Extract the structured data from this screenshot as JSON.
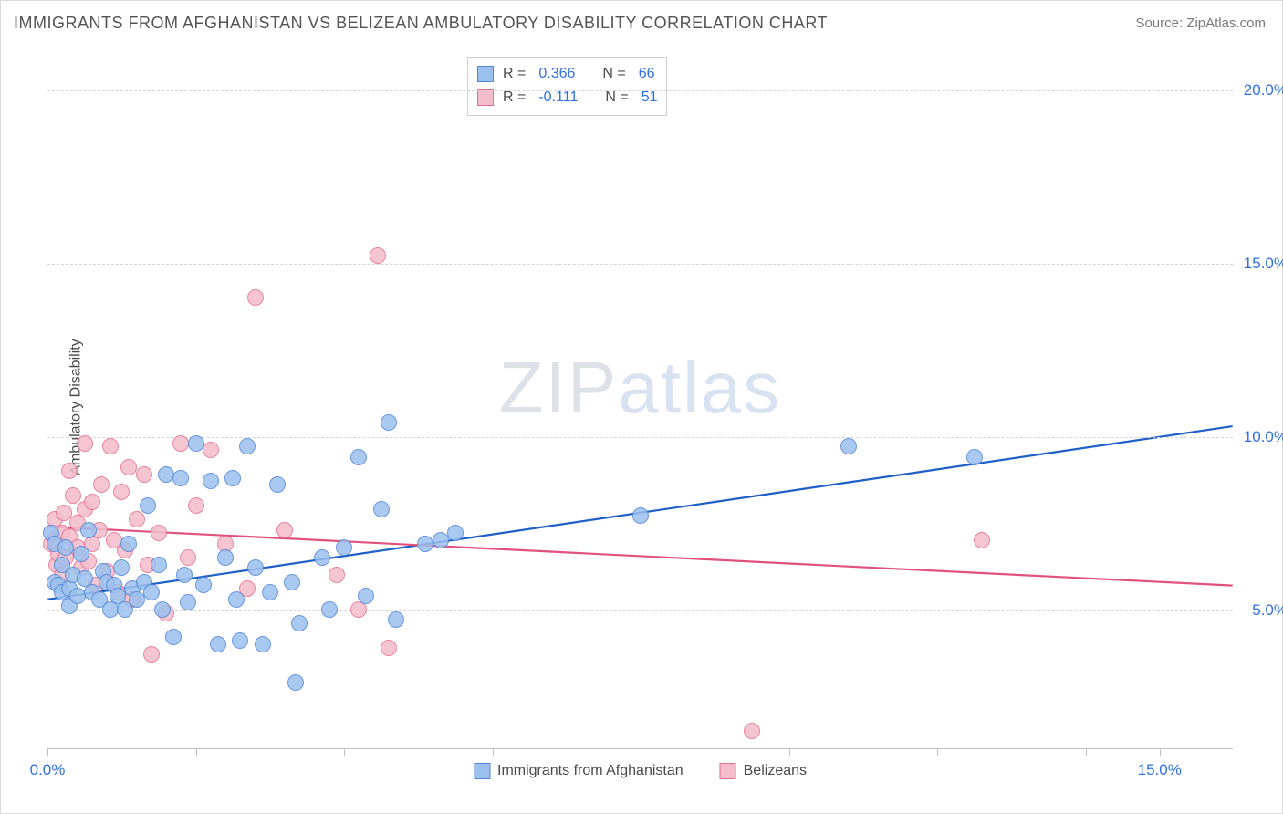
{
  "title": "IMMIGRANTS FROM AFGHANISTAN VS BELIZEAN AMBULATORY DISABILITY CORRELATION CHART",
  "source": "Source: ZipAtlas.com",
  "ylabel": "Ambulatory Disability",
  "watermark": {
    "part1": "ZIP",
    "part2": "atlas"
  },
  "chart": {
    "type": "scatter",
    "background_color": "#ffffff",
    "grid_color": "#d4d4d4",
    "axis_color": "#bfbfbf",
    "xlim": [
      0,
      16
    ],
    "ylim": [
      1,
      21
    ],
    "xticks": [
      0,
      2,
      4,
      6,
      8,
      10,
      12,
      14,
      15
    ],
    "xtick_labels": {
      "0": "0.0%",
      "15": "15.0%"
    },
    "yticks": [
      5,
      10,
      15,
      20
    ],
    "ytick_labels": {
      "5": "5.0%",
      "10": "10.0%",
      "15": "15.0%",
      "20": "20.0%"
    },
    "tick_label_color": "#2f6fe0",
    "tick_label_fontsize": 17,
    "marker_radius": 9,
    "marker_fill_opacity": 0.35,
    "marker_stroke_opacity": 0.9,
    "marker_stroke_width": 1.2,
    "line_width": 2.2
  },
  "series": [
    {
      "key": "afghan",
      "label": "Immigrants from Afghanistan",
      "color_fill": "#9cc0ee",
      "color_stroke": "#4f87d6",
      "line_color": "#1f5fc8",
      "R": "0.366",
      "N": "66",
      "trend": {
        "x1": 0,
        "y1": 5.3,
        "x2": 16,
        "y2": 10.3
      },
      "points": [
        [
          0.05,
          7.2
        ],
        [
          0.1,
          6.9
        ],
        [
          0.1,
          5.8
        ],
        [
          0.15,
          5.7
        ],
        [
          0.2,
          6.3
        ],
        [
          0.2,
          5.5
        ],
        [
          0.25,
          6.8
        ],
        [
          0.3,
          5.6
        ],
        [
          0.3,
          5.1
        ],
        [
          0.35,
          6.0
        ],
        [
          0.4,
          5.4
        ],
        [
          0.45,
          6.6
        ],
        [
          0.5,
          5.9
        ],
        [
          0.55,
          7.3
        ],
        [
          0.6,
          5.5
        ],
        [
          0.7,
          5.3
        ],
        [
          0.75,
          6.1
        ],
        [
          0.8,
          5.8
        ],
        [
          0.85,
          5.0
        ],
        [
          0.9,
          5.7
        ],
        [
          0.95,
          5.4
        ],
        [
          1.0,
          6.2
        ],
        [
          1.05,
          5.0
        ],
        [
          1.1,
          6.9
        ],
        [
          1.15,
          5.6
        ],
        [
          1.2,
          5.3
        ],
        [
          1.3,
          5.8
        ],
        [
          1.35,
          8.0
        ],
        [
          1.4,
          5.5
        ],
        [
          1.5,
          6.3
        ],
        [
          1.55,
          5.0
        ],
        [
          1.6,
          8.9
        ],
        [
          1.7,
          4.2
        ],
        [
          1.8,
          8.8
        ],
        [
          1.85,
          6.0
        ],
        [
          1.9,
          5.2
        ],
        [
          2.0,
          9.8
        ],
        [
          2.1,
          5.7
        ],
        [
          2.2,
          8.7
        ],
        [
          2.3,
          4.0
        ],
        [
          2.4,
          6.5
        ],
        [
          2.5,
          8.8
        ],
        [
          2.55,
          5.3
        ],
        [
          2.6,
          4.1
        ],
        [
          2.7,
          9.7
        ],
        [
          2.8,
          6.2
        ],
        [
          2.9,
          4.0
        ],
        [
          3.0,
          5.5
        ],
        [
          3.1,
          8.6
        ],
        [
          3.3,
          5.8
        ],
        [
          3.35,
          2.9
        ],
        [
          3.4,
          4.6
        ],
        [
          3.7,
          6.5
        ],
        [
          3.8,
          5.0
        ],
        [
          4.0,
          6.8
        ],
        [
          4.2,
          9.4
        ],
        [
          4.3,
          5.4
        ],
        [
          4.5,
          7.9
        ],
        [
          4.6,
          10.4
        ],
        [
          4.7,
          4.7
        ],
        [
          5.1,
          6.9
        ],
        [
          5.3,
          7.0
        ],
        [
          5.5,
          7.2
        ],
        [
          8.0,
          7.7
        ],
        [
          10.8,
          9.7
        ],
        [
          12.5,
          9.4
        ]
      ]
    },
    {
      "key": "belizeans",
      "label": "Belizeans",
      "color_fill": "#f4bdcb",
      "color_stroke": "#e46f91",
      "line_color": "#e0527c",
      "R": "-0.111",
      "N": "51",
      "trend": {
        "x1": 0,
        "y1": 7.4,
        "x2": 16,
        "y2": 5.7
      },
      "points": [
        [
          0.05,
          6.9
        ],
        [
          0.1,
          7.6
        ],
        [
          0.1,
          7.0
        ],
        [
          0.12,
          6.3
        ],
        [
          0.15,
          6.6
        ],
        [
          0.2,
          7.2
        ],
        [
          0.2,
          6.0
        ],
        [
          0.22,
          7.8
        ],
        [
          0.25,
          6.5
        ],
        [
          0.3,
          9.0
        ],
        [
          0.3,
          7.1
        ],
        [
          0.35,
          8.3
        ],
        [
          0.4,
          6.8
        ],
        [
          0.4,
          7.5
        ],
        [
          0.45,
          6.2
        ],
        [
          0.5,
          9.8
        ],
        [
          0.5,
          7.9
        ],
        [
          0.55,
          6.4
        ],
        [
          0.6,
          8.1
        ],
        [
          0.6,
          6.9
        ],
        [
          0.65,
          5.7
        ],
        [
          0.7,
          7.3
        ],
        [
          0.72,
          8.6
        ],
        [
          0.8,
          6.1
        ],
        [
          0.85,
          9.7
        ],
        [
          0.9,
          7.0
        ],
        [
          0.95,
          5.5
        ],
        [
          1.0,
          8.4
        ],
        [
          1.05,
          6.7
        ],
        [
          1.1,
          9.1
        ],
        [
          1.15,
          5.3
        ],
        [
          1.2,
          7.6
        ],
        [
          1.3,
          8.9
        ],
        [
          1.35,
          6.3
        ],
        [
          1.4,
          3.7
        ],
        [
          1.5,
          7.2
        ],
        [
          1.6,
          4.9
        ],
        [
          1.8,
          9.8
        ],
        [
          1.9,
          6.5
        ],
        [
          2.0,
          8.0
        ],
        [
          2.2,
          9.6
        ],
        [
          2.4,
          6.9
        ],
        [
          2.7,
          5.6
        ],
        [
          2.8,
          14.0
        ],
        [
          3.2,
          7.3
        ],
        [
          3.9,
          6.0
        ],
        [
          4.2,
          5.0
        ],
        [
          4.45,
          15.2
        ],
        [
          4.6,
          3.9
        ],
        [
          9.5,
          1.5
        ],
        [
          12.6,
          7.0
        ]
      ]
    }
  ],
  "statbox_labels": {
    "R": "R =",
    "N": "N ="
  },
  "bottom_legend": [
    {
      "series_key": "afghan"
    },
    {
      "series_key": "belizeans"
    }
  ]
}
